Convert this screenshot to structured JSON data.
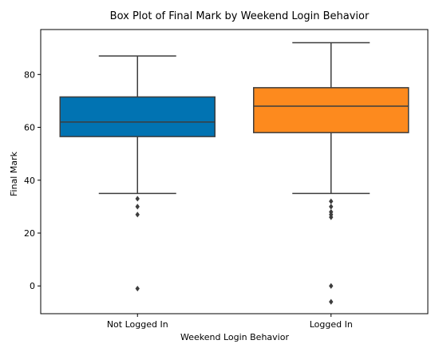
{
  "chart_data": {
    "type": "box",
    "title": "Box Plot of Final Mark by Weekend Login Behavior",
    "xlabel": "Weekend Login Behavior",
    "ylabel": "Final Mark",
    "ylim": [
      -10.5,
      97
    ],
    "yticks": [
      0,
      20,
      40,
      60,
      80
    ],
    "categories": [
      "Not Logged In",
      "Logged In"
    ],
    "boxes": [
      {
        "name": "Not Logged In",
        "color": "#0173b2",
        "whisker_low": 35,
        "q1": 56.5,
        "median": 62,
        "q3": 71.5,
        "whisker_high": 87,
        "outliers": [
          33,
          30,
          27,
          -1
        ]
      },
      {
        "name": "Logged In",
        "color": "#fd8a1e",
        "whisker_low": 35,
        "q1": 58,
        "median": 68,
        "q3": 75,
        "whisker_high": 92,
        "outliers": [
          32,
          30,
          28,
          27,
          26,
          0,
          -6
        ]
      }
    ],
    "grid": false,
    "legend": "none"
  }
}
